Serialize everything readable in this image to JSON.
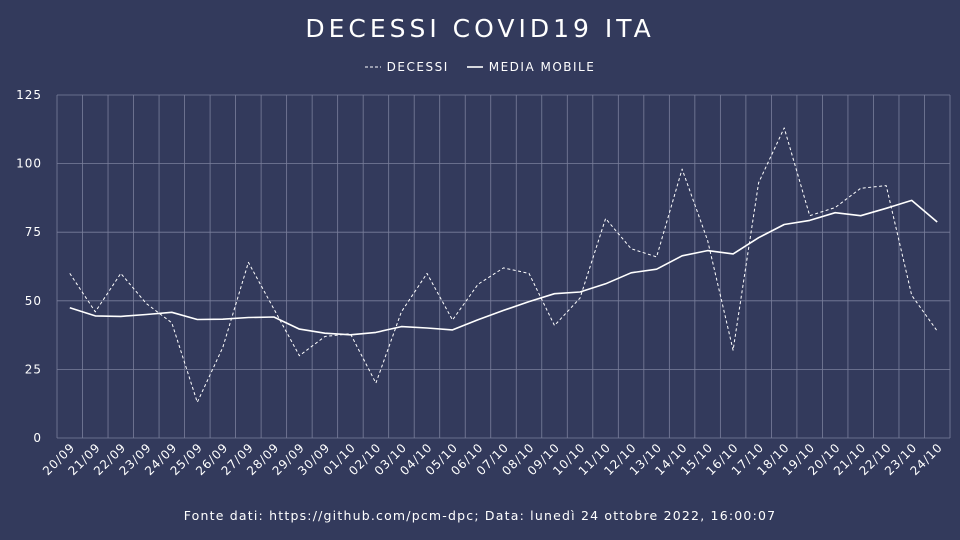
{
  "title": "DECESSI COVID19 ITA",
  "legend": {
    "decessi": "DECESSI",
    "media_mobile": "MEDIA MOBILE"
  },
  "footer": "Fonte dati: https://github.com/pcm-dpc; Data: lunedì 24 ottobre 2022, 16:00:07",
  "colors": {
    "background": "#333a5c",
    "line": "#ffffff",
    "grid": "#7a7f9c"
  },
  "chart_data": {
    "type": "line",
    "title": "DECESSI COVID19 ITA",
    "x": [
      "20/09",
      "21/09",
      "22/09",
      "23/09",
      "24/09",
      "25/09",
      "26/09",
      "27/09",
      "28/09",
      "29/09",
      "30/09",
      "01/10",
      "02/10",
      "03/10",
      "04/10",
      "05/10",
      "06/10",
      "07/10",
      "08/10",
      "09/10",
      "10/10",
      "11/10",
      "12/10",
      "13/10",
      "14/10",
      "15/10",
      "16/10",
      "17/10",
      "18/10",
      "19/10",
      "20/10",
      "21/10",
      "22/10",
      "23/10",
      "24/10"
    ],
    "ylim": [
      0,
      125
    ],
    "yticks": [
      0,
      25,
      50,
      75,
      100,
      125
    ],
    "grid": true,
    "legend_position": "top-center",
    "series": [
      {
        "name": "DECESSI",
        "style": "dashed",
        "values": [
          60,
          46,
          60,
          49,
          42,
          13,
          33,
          64,
          47,
          30,
          37,
          38,
          20,
          46,
          60,
          43,
          56,
          62,
          60,
          41,
          51,
          80,
          69,
          66,
          98,
          72,
          32,
          93,
          113,
          81,
          84,
          91,
          92,
          52,
          39
        ]
      },
      {
        "name": "MEDIA MOBILE",
        "style": "solid",
        "values": [
          47.5,
          44.5,
          44.3,
          45,
          45.8,
          43.2,
          43.3,
          43.9,
          44.1,
          39.7,
          38.2,
          37.6,
          38.5,
          40.6,
          40.1,
          39.4,
          43.1,
          46.5,
          49.7,
          52.6,
          53.2,
          56.2,
          60.2,
          61.5,
          66.4,
          68.3,
          67.1,
          73,
          77.8,
          79.3,
          82.1,
          81,
          83.7,
          86.6,
          78.7
        ]
      }
    ]
  }
}
